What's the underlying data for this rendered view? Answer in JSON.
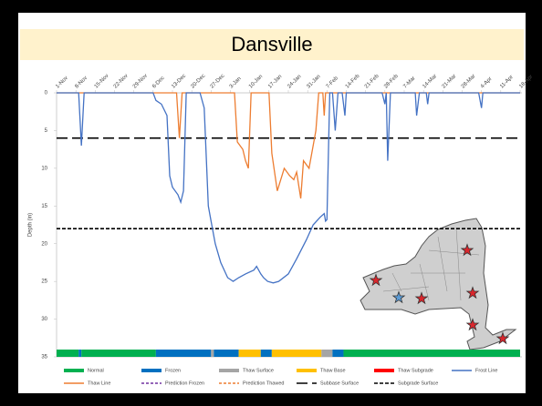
{
  "chart_data": {
    "type": "line",
    "title": "Dansville",
    "y_label": "Depth (in)",
    "xlim": [
      0,
      168
    ],
    "xticks": [
      {
        "value": 0,
        "label": "1-Nov"
      },
      {
        "value": 7,
        "label": "8-Nov"
      },
      {
        "value": 14,
        "label": "15-Nov"
      },
      {
        "value": 21,
        "label": "22-Nov"
      },
      {
        "value": 28,
        "label": "29-Nov"
      },
      {
        "value": 35,
        "label": "6-Dec"
      },
      {
        "value": 42,
        "label": "13-Dec"
      },
      {
        "value": 49,
        "label": "20-Dec"
      },
      {
        "value": 56,
        "label": "27-Dec"
      },
      {
        "value": 63,
        "label": "3-Jan"
      },
      {
        "value": 70,
        "label": "10-Jan"
      },
      {
        "value": 77,
        "label": "17-Jan"
      },
      {
        "value": 84,
        "label": "24-Jan"
      },
      {
        "value": 91,
        "label": "31-Jan"
      },
      {
        "value": 98,
        "label": "7-Feb"
      },
      {
        "value": 105,
        "label": "14-Feb"
      },
      {
        "value": 112,
        "label": "21-Feb"
      },
      {
        "value": 119,
        "label": "28-Feb"
      },
      {
        "value": 126,
        "label": "7-Mar"
      },
      {
        "value": 133,
        "label": "14-Mar"
      },
      {
        "value": 140,
        "label": "21-Mar"
      },
      {
        "value": 147,
        "label": "28-Mar"
      },
      {
        "value": 154,
        "label": "4-Apr"
      },
      {
        "value": 161,
        "label": "11-Apr"
      },
      {
        "value": 168,
        "label": "18-Apr"
      }
    ],
    "ylim": [
      0,
      35
    ],
    "yticks": [
      0,
      5,
      10,
      15,
      20,
      25,
      30,
      35
    ],
    "y_inverted": true,
    "series": [
      {
        "name": "Frost Line",
        "color": "#4472c4",
        "x": [
          0,
          8,
          9,
          10,
          35,
          36,
          38,
          40,
          41,
          42,
          44,
          45,
          46,
          47,
          52,
          53.5,
          55,
          56,
          57.5,
          59.5,
          62,
          64,
          66,
          68.5,
          71.5,
          72.5,
          74,
          75,
          76.5,
          78.5,
          80.5,
          84,
          87,
          90.5,
          93,
          95.5,
          97,
          97.5,
          98,
          99,
          100,
          101,
          102,
          103.5,
          104.5,
          105,
          118,
          119,
          119.5,
          120,
          121,
          130,
          130.5,
          131.5,
          134,
          134.5,
          135,
          153,
          154,
          154.5,
          168
        ],
        "values": [
          0,
          0,
          7,
          0,
          0,
          1,
          1.5,
          3,
          11,
          12.5,
          13.5,
          14.5,
          13,
          0,
          0,
          2,
          15,
          17,
          20,
          22.5,
          24.5,
          25,
          24.5,
          24,
          23.5,
          23,
          24,
          24.5,
          25,
          25.2,
          25,
          24,
          22,
          19.5,
          17.5,
          16.5,
          16,
          17,
          16.8,
          0,
          0,
          5,
          0,
          0,
          3,
          0,
          0,
          1.5,
          0,
          9,
          0,
          0,
          3,
          0,
          0,
          1.5,
          0,
          0,
          2,
          0,
          0
        ]
      },
      {
        "name": "Thaw Line",
        "color": "#ed7d31",
        "x": [
          0,
          43.5,
          44.5,
          45.5,
          64.5,
          65.5,
          67.5,
          68.5,
          69.5,
          70.5,
          77,
          78,
          80,
          82.5,
          84.5,
          86,
          87,
          88.5,
          89.5,
          91.5,
          92.5,
          94,
          95,
          96.5,
          97,
          97.5,
          168
        ],
        "values": [
          0,
          0,
          6,
          0,
          0,
          6.5,
          7.5,
          9,
          10,
          0,
          0,
          8,
          13,
          10,
          11,
          11.5,
          10.5,
          14,
          9,
          10,
          8,
          5,
          0,
          0,
          3,
          0,
          0
        ]
      }
    ],
    "reference_lines": [
      {
        "name": "Subbase Surface",
        "value": 6,
        "color": "#000000",
        "dash": "12 5"
      },
      {
        "name": "Subgrade Surface",
        "value": 18,
        "color": "#000000",
        "dash": "4 2"
      }
    ],
    "status_categories": [
      {
        "name": "Normal",
        "color": "#00b050"
      },
      {
        "name": "Frozen",
        "color": "#0070c0"
      },
      {
        "name": "Thaw Surface",
        "color": "#a5a5a5"
      },
      {
        "name": "Thaw Base",
        "color": "#ffc000"
      },
      {
        "name": "Thaw Subgrade",
        "color": "#ff0000"
      }
    ],
    "status_bar": [
      {
        "start": 0,
        "end": 8,
        "status": "Normal"
      },
      {
        "start": 8,
        "end": 9,
        "status": "Frozen"
      },
      {
        "start": 9,
        "end": 36,
        "status": "Normal"
      },
      {
        "start": 36,
        "end": 56,
        "status": "Frozen"
      },
      {
        "start": 56,
        "end": 57,
        "status": "Thaw Surface"
      },
      {
        "start": 57,
        "end": 66,
        "status": "Frozen"
      },
      {
        "start": 66,
        "end": 74,
        "status": "Thaw Base"
      },
      {
        "start": 74,
        "end": 78,
        "status": "Frozen"
      },
      {
        "start": 78,
        "end": 96,
        "status": "Thaw Base"
      },
      {
        "start": 96,
        "end": 100,
        "status": "Thaw Surface"
      },
      {
        "start": 100,
        "end": 104,
        "status": "Frozen"
      },
      {
        "start": 104,
        "end": 168,
        "status": "Normal"
      }
    ],
    "legend_only": [
      {
        "name": "Prediction Frozen",
        "color": "#7030a0",
        "dash": "3 2"
      },
      {
        "name": "Prediction Thawed",
        "color": "#ed7d31",
        "dash": "3 2"
      }
    ]
  }
}
